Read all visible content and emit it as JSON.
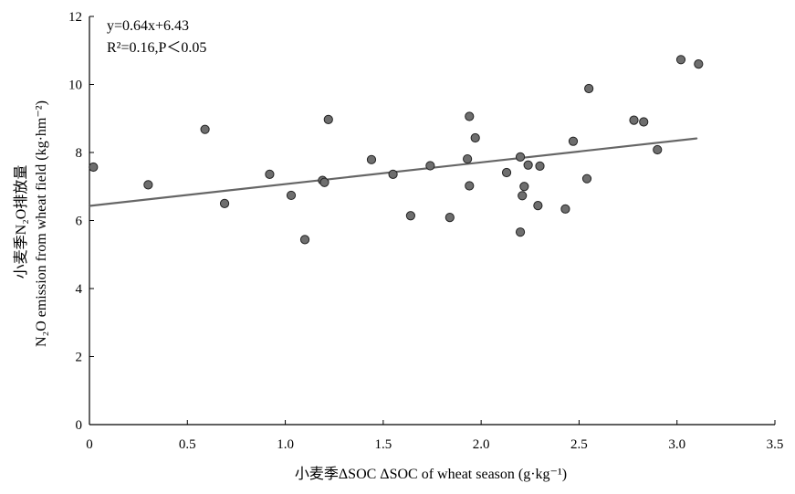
{
  "chart_data": {
    "type": "scatter",
    "xlabel": "小麦季ΔSOC ΔSOC of wheat season (g·kg⁻¹)",
    "ylabel_cn": "小麦季N₂O排放量",
    "ylabel_en": "N₂O emission from wheat field (kg·hm⁻²)",
    "xlim": [
      0,
      3.5
    ],
    "ylim": [
      0,
      12
    ],
    "xticks": [
      0,
      0.5,
      1.0,
      1.5,
      2.0,
      2.5,
      3.0,
      3.5
    ],
    "xtick_labels": [
      "0",
      "0.5",
      "1.0",
      "1.5",
      "2.0",
      "2.5",
      "3.0",
      "3.5"
    ],
    "yticks": [
      0,
      2,
      4,
      6,
      8,
      10,
      12
    ],
    "ytick_labels": [
      "0",
      "2",
      "4",
      "6",
      "8",
      "10",
      "12"
    ],
    "annotations": {
      "equation": "y=0.64x+6.43",
      "r2": "R²=0.16,P＜0.05"
    },
    "trendline": {
      "slope": 0.64,
      "intercept": 6.43,
      "x_range": [
        0,
        3.1
      ]
    },
    "points": [
      {
        "x": 0.02,
        "y": 7.57
      },
      {
        "x": 0.3,
        "y": 7.05
      },
      {
        "x": 0.59,
        "y": 8.68
      },
      {
        "x": 0.69,
        "y": 6.5
      },
      {
        "x": 0.92,
        "y": 7.36
      },
      {
        "x": 1.03,
        "y": 6.74
      },
      {
        "x": 1.1,
        "y": 5.44
      },
      {
        "x": 1.19,
        "y": 7.18
      },
      {
        "x": 1.2,
        "y": 7.12
      },
      {
        "x": 1.22,
        "y": 8.97
      },
      {
        "x": 1.44,
        "y": 7.79
      },
      {
        "x": 1.55,
        "y": 7.36
      },
      {
        "x": 1.64,
        "y": 6.14
      },
      {
        "x": 1.74,
        "y": 7.61
      },
      {
        "x": 1.84,
        "y": 6.09
      },
      {
        "x": 1.93,
        "y": 7.81
      },
      {
        "x": 1.94,
        "y": 9.06
      },
      {
        "x": 1.94,
        "y": 7.02
      },
      {
        "x": 1.97,
        "y": 8.43
      },
      {
        "x": 2.13,
        "y": 7.41
      },
      {
        "x": 2.2,
        "y": 7.87
      },
      {
        "x": 2.2,
        "y": 5.66
      },
      {
        "x": 2.21,
        "y": 6.73
      },
      {
        "x": 2.22,
        "y": 7.0
      },
      {
        "x": 2.24,
        "y": 7.63
      },
      {
        "x": 2.29,
        "y": 6.44
      },
      {
        "x": 2.3,
        "y": 7.6
      },
      {
        "x": 2.43,
        "y": 6.34
      },
      {
        "x": 2.47,
        "y": 8.33
      },
      {
        "x": 2.54,
        "y": 7.23
      },
      {
        "x": 2.55,
        "y": 9.88
      },
      {
        "x": 2.78,
        "y": 8.95
      },
      {
        "x": 2.83,
        "y": 8.9
      },
      {
        "x": 2.9,
        "y": 8.08
      },
      {
        "x": 3.02,
        "y": 10.73
      },
      {
        "x": 3.11,
        "y": 10.6
      }
    ]
  }
}
